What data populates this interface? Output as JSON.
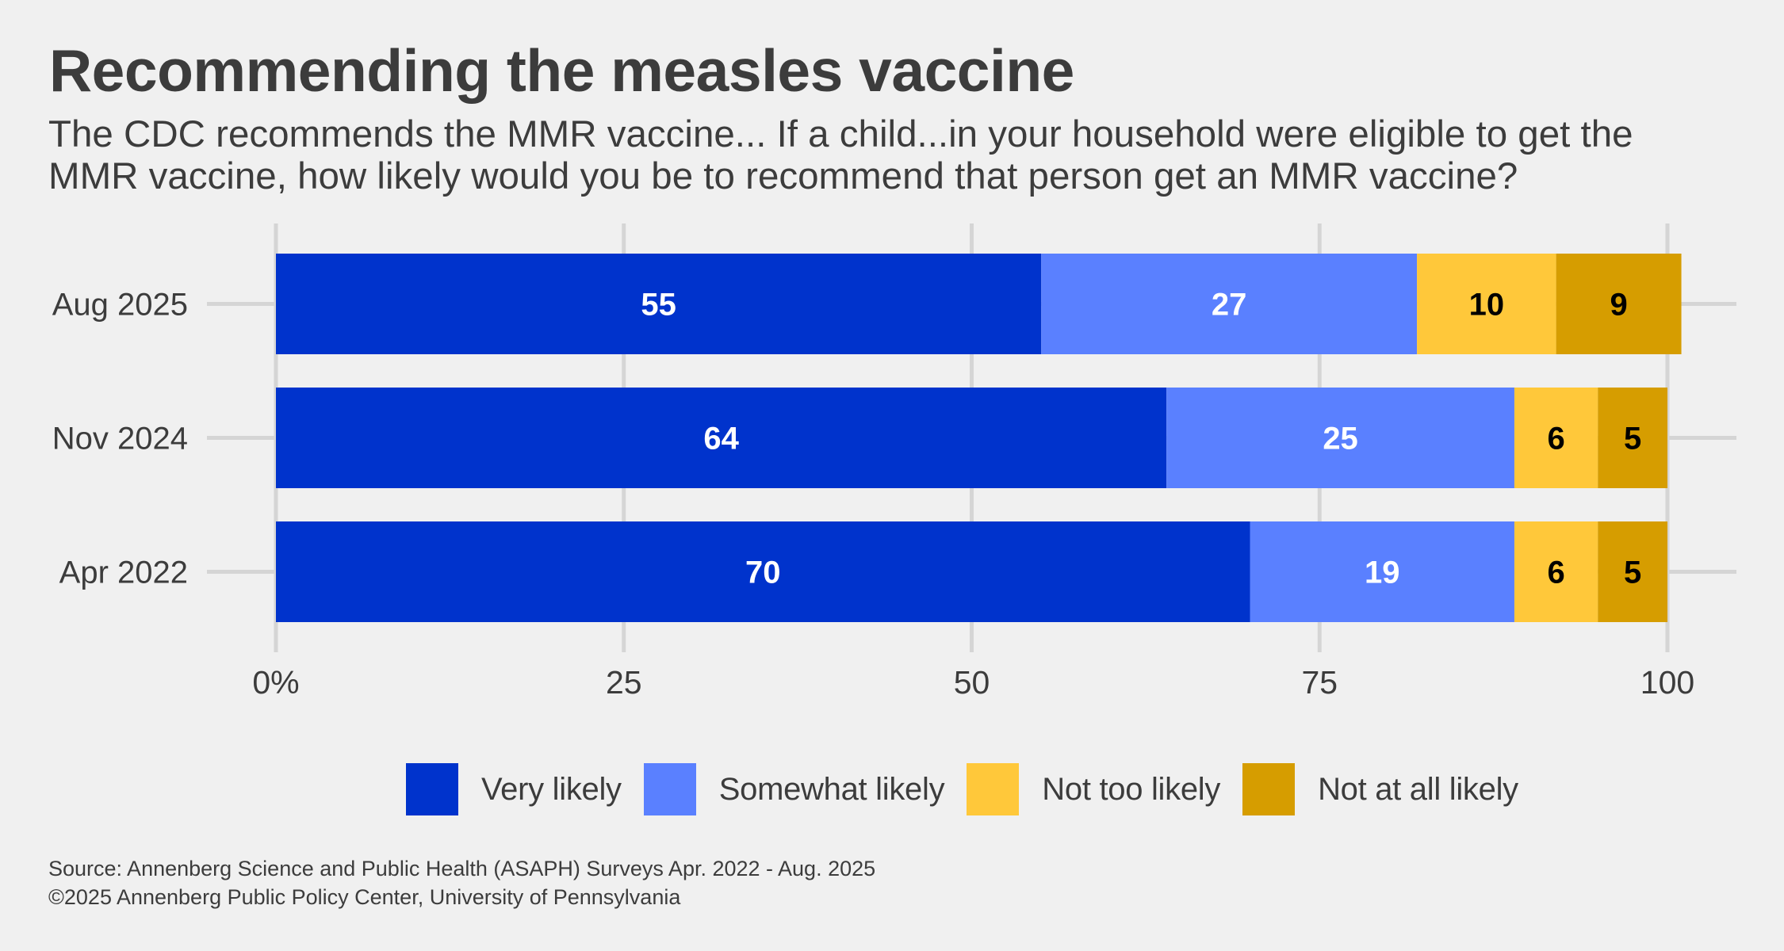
{
  "header": {
    "title": "Recommending the measles vaccine",
    "subtitle_lines": [
      "The CDC recommends the MMR vaccine... If a child...in your household were eligible to get the",
      "MMR vaccine, how likely would you be to recommend that person get an MMR vaccine?"
    ]
  },
  "footer": {
    "source": "Source: Annenberg Science and Public Health (ASAPH) Surveys Apr. 2022 - Aug. 2025",
    "copyright": "©2025 Annenberg Public Policy Center, University of Pennsylvania"
  },
  "chart_data": {
    "type": "bar",
    "orientation": "horizontal",
    "stacked": true,
    "title": "Recommending the measles vaccine",
    "subtitle": "The CDC recommends the MMR vaccine... If a child...in your household were eligible to get the MMR vaccine, how likely would you be to recommend that person get an MMR vaccine?",
    "xlabel": "",
    "ylabel": "",
    "xlim": [
      0,
      100
    ],
    "x_ticks": [
      0,
      25,
      50,
      75,
      100
    ],
    "x_tick_labels": [
      "0%",
      "25",
      "50",
      "75",
      "100"
    ],
    "categories": [
      "Aug 2025",
      "Nov 2024",
      "Apr 2022"
    ],
    "series": [
      {
        "name": "Very likely",
        "color": "#0033cc",
        "label_color": "#ffffff",
        "values": [
          55,
          64,
          70
        ]
      },
      {
        "name": "Somewhat likely",
        "color": "#5a80ff",
        "label_color": "#ffffff",
        "values": [
          27,
          25,
          19
        ]
      },
      {
        "name": "Not too likely",
        "color": "#ffc83a",
        "label_color": "#000000",
        "values": [
          10,
          6,
          6
        ]
      },
      {
        "name": "Not at all likely",
        "color": "#d69d00",
        "label_color": "#000000",
        "values": [
          9,
          5,
          5
        ]
      }
    ],
    "grid": true,
    "legend_position": "bottom",
    "source": "Source: Annenberg Science and Public Health (ASAPH) Surveys Apr. 2022 - Aug. 2025"
  },
  "legend": {
    "items": [
      {
        "label": "Very likely",
        "color": "#0033cc"
      },
      {
        "label": "Somewhat likely",
        "color": "#5a80ff"
      },
      {
        "label": "Not too likely",
        "color": "#ffc83a"
      },
      {
        "label": "Not at all likely",
        "color": "#d69d00"
      }
    ]
  }
}
